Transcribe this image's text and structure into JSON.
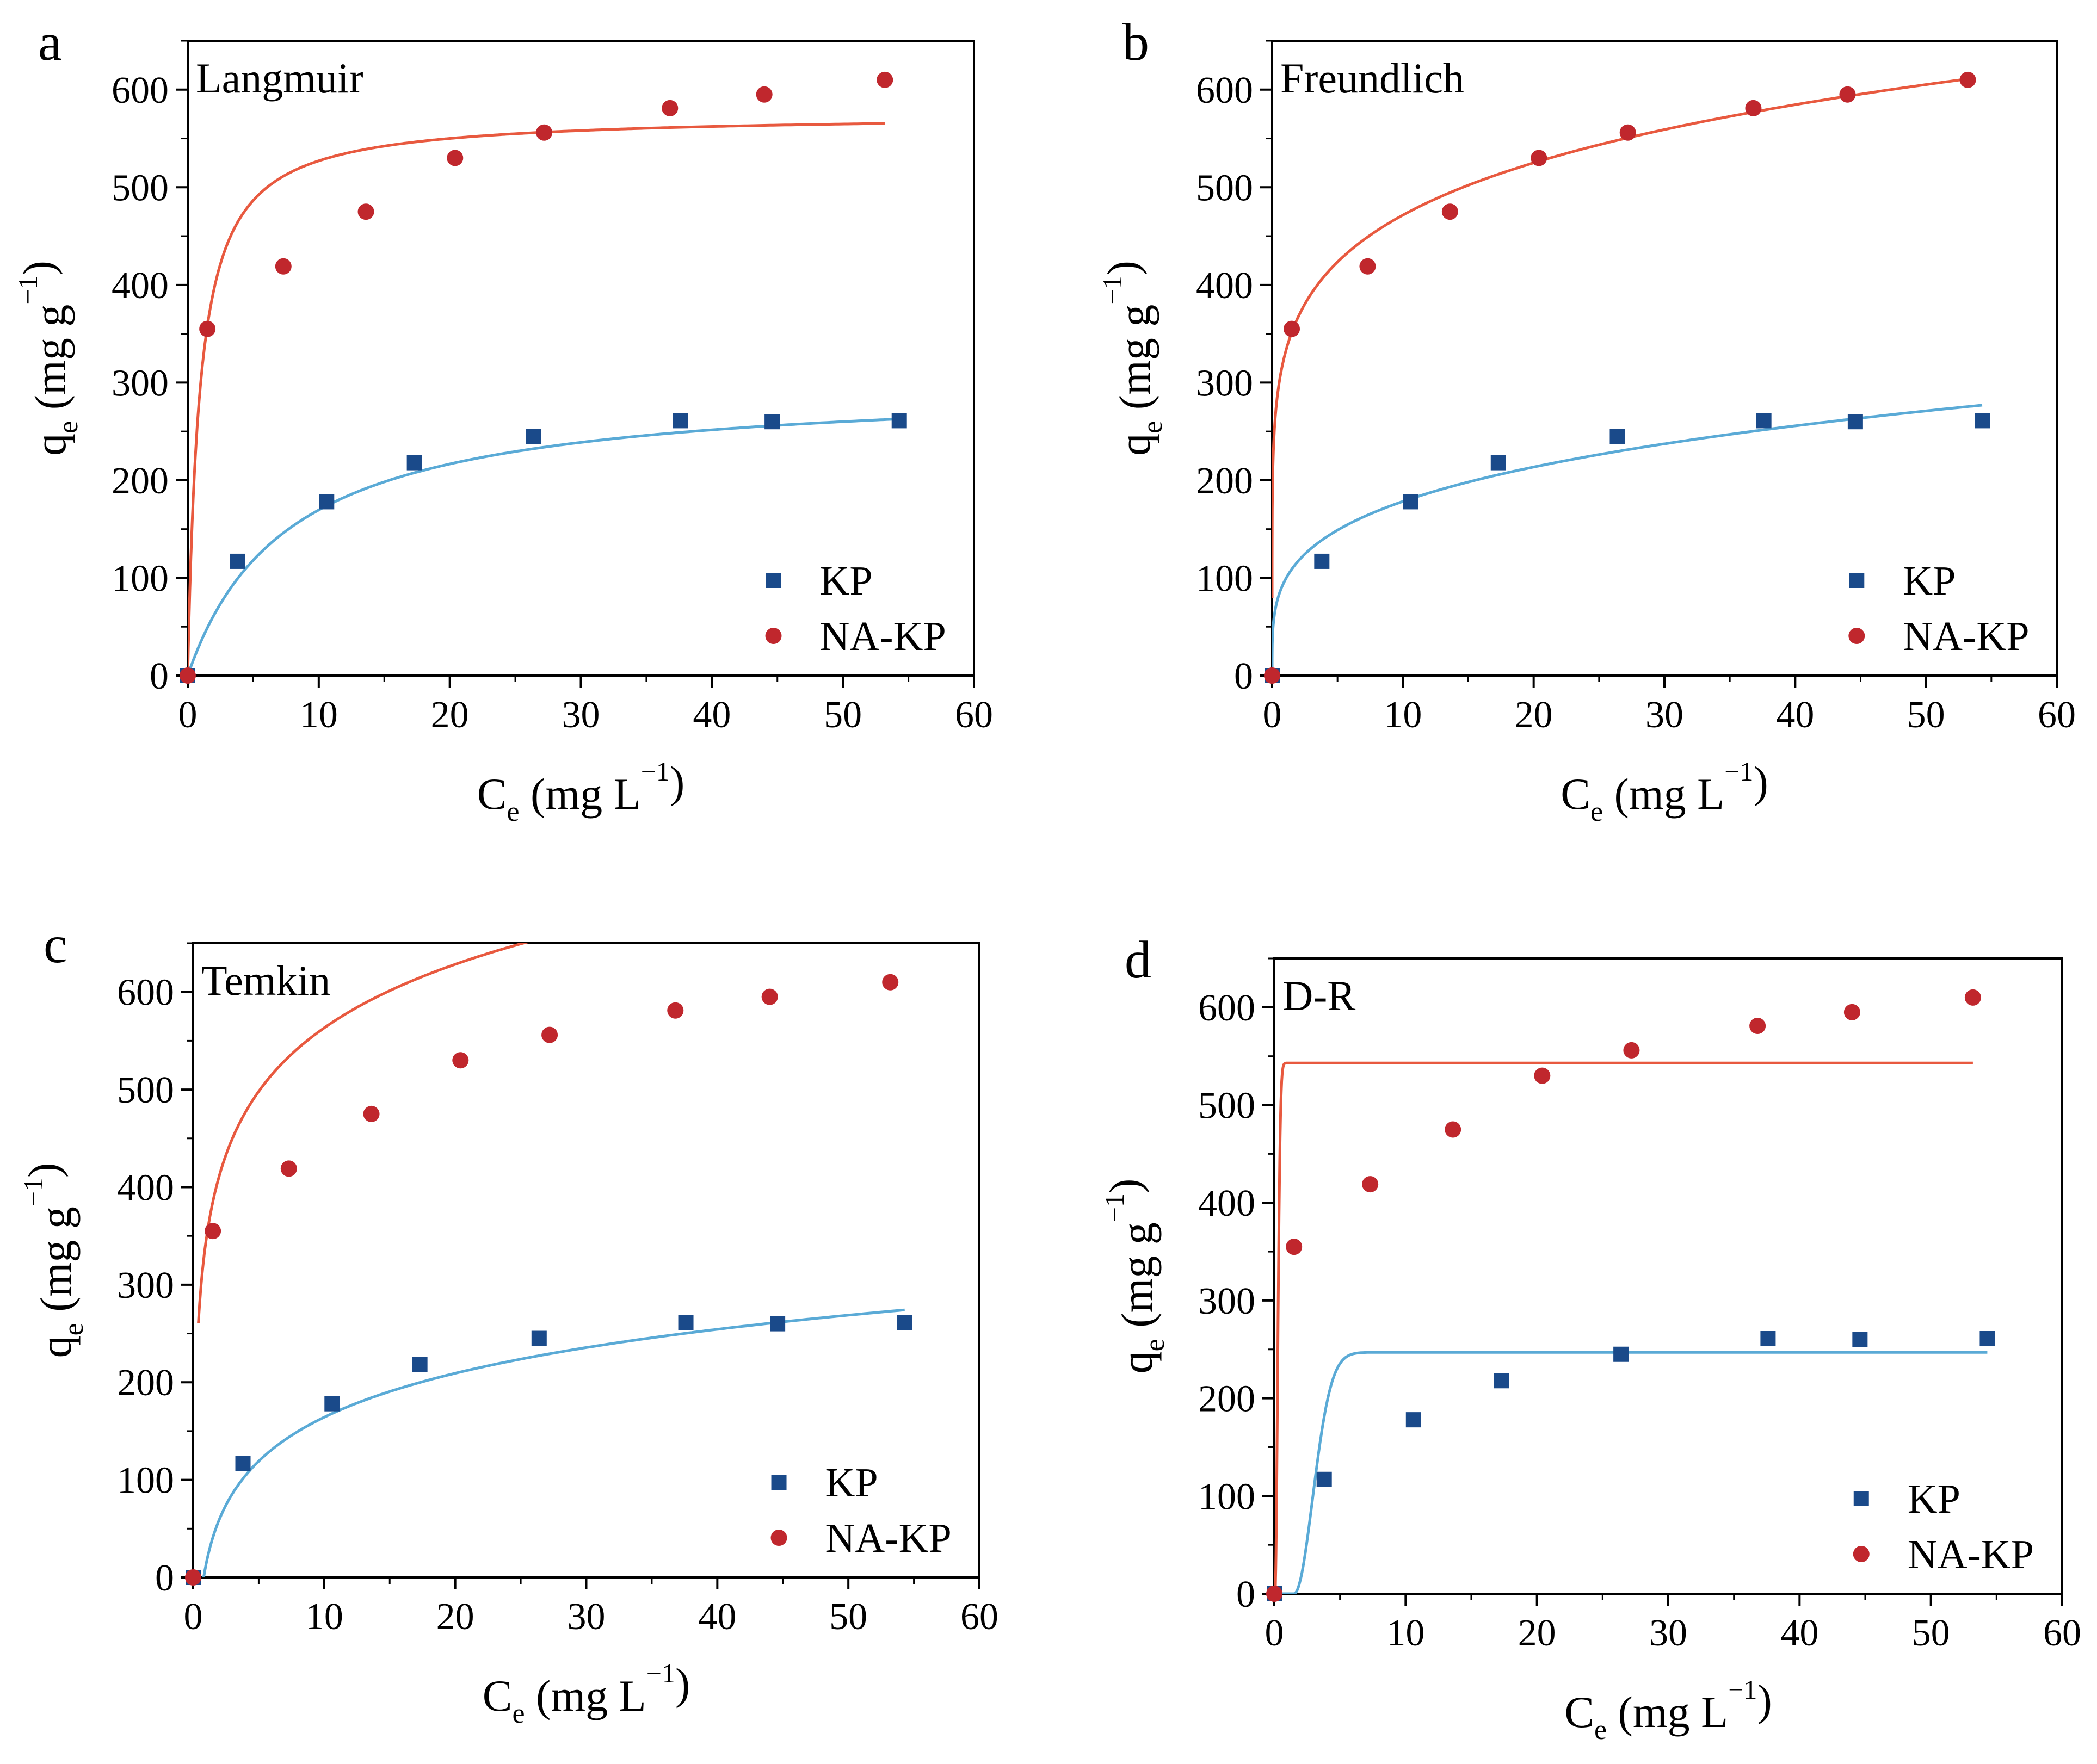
{
  "colors": {
    "kp_marker": "#1a4a8a",
    "nakp_marker": "#c0272d",
    "kp_fit": "#5aaad6",
    "nakp_fit": "#e8593f",
    "axis": "#000000"
  },
  "chart_data": [
    {
      "type": "scatter",
      "panel": "a",
      "model": "Langmuir",
      "xlabel": {
        "main": "C",
        "sub": "e",
        "unit_pre": "(mg L",
        "unit_sup": "−1",
        "unit_post": ")"
      },
      "ylabel": {
        "main": "q",
        "sub": "e",
        "unit_pre": "(mg g",
        "unit_sup": "−1",
        "unit_post": ")"
      },
      "xlim": [
        0,
        60
      ],
      "ylim": [
        0,
        650
      ],
      "xticks": [
        0,
        10,
        20,
        30,
        40,
        50,
        60
      ],
      "yticks": [
        0,
        100,
        200,
        300,
        400,
        500,
        600
      ],
      "legend_position": "lower-right",
      "series": [
        {
          "name": "KP",
          "marker": "square",
          "x": [
            0,
            3.8,
            10.6,
            17.3,
            26.4,
            37.6,
            44.6,
            54.3
          ],
          "y": [
            0,
            117,
            178,
            218,
            245,
            261,
            260,
            261
          ],
          "fit": {
            "model": "langmuir",
            "qmax": 300,
            "KL": 0.13,
            "x_end": 54.3
          }
        },
        {
          "name": "NA-KP",
          "marker": "circle",
          "x": [
            0,
            1.5,
            7.3,
            13.6,
            20.4,
            27.2,
            36.8,
            44.0,
            53.2
          ],
          "y": [
            0,
            355,
            419,
            475,
            530,
            556,
            581,
            595,
            610
          ],
          "fit": {
            "model": "langmuir",
            "qmax": 575,
            "KL": 1.1,
            "x_end": 53.2
          }
        }
      ]
    },
    {
      "type": "scatter",
      "panel": "b",
      "model": "Freundlich",
      "xlabel": {
        "main": "C",
        "sub": "e",
        "unit_pre": "(mg L",
        "unit_sup": "−1",
        "unit_post": ")"
      },
      "ylabel": {
        "main": "q",
        "sub": "e",
        "unit_pre": "(mg g",
        "unit_sup": "−1",
        "unit_post": ")"
      },
      "xlim": [
        0,
        60
      ],
      "ylim": [
        0,
        650
      ],
      "xticks": [
        0,
        10,
        20,
        30,
        40,
        50,
        60
      ],
      "yticks": [
        0,
        100,
        200,
        300,
        400,
        500,
        600
      ],
      "legend_position": "lower-right",
      "series": [
        {
          "name": "KP",
          "marker": "square",
          "x": [
            0,
            3.8,
            10.6,
            17.3,
            26.4,
            37.6,
            44.6,
            54.3
          ],
          "y": [
            0,
            117,
            178,
            218,
            245,
            261,
            260,
            261
          ],
          "fit": {
            "model": "freundlich",
            "KF": 98,
            "n_inv": 0.26,
            "x_end": 54.3
          }
        },
        {
          "name": "NA-KP",
          "marker": "circle",
          "x": [
            0,
            1.5,
            7.3,
            13.6,
            20.4,
            27.2,
            36.8,
            44.0,
            53.2
          ],
          "y": [
            0,
            355,
            419,
            475,
            530,
            556,
            581,
            595,
            610
          ],
          "fit": {
            "model": "freundlich",
            "KF": 330,
            "n_inv": 0.155,
            "x_end": 53.2
          }
        }
      ]
    },
    {
      "type": "scatter",
      "panel": "c",
      "model": "Temkin",
      "xlabel": {
        "main": "C",
        "sub": "e",
        "unit_pre": "(mg L",
        "unit_sup": "−1",
        "unit_post": ")"
      },
      "ylabel": {
        "main": "q",
        "sub": "e",
        "unit_pre": "(mg g",
        "unit_sup": "−1",
        "unit_post": ")"
      },
      "xlim": [
        0,
        60
      ],
      "ylim": [
        0,
        650
      ],
      "xticks": [
        0,
        10,
        20,
        30,
        40,
        50,
        60
      ],
      "yticks": [
        0,
        100,
        200,
        300,
        400,
        500,
        600
      ],
      "legend_position": "lower-right",
      "series": [
        {
          "name": "KP",
          "marker": "square",
          "x": [
            0,
            3.8,
            10.6,
            17.3,
            26.4,
            37.6,
            44.6,
            54.3
          ],
          "y": [
            0,
            117,
            178,
            218,
            245,
            261,
            260,
            261
          ],
          "fit": {
            "model": "temkin",
            "B": 65,
            "KT": 1.25,
            "x_start": 0.8,
            "x_end": 54.3
          }
        },
        {
          "name": "NA-KP",
          "marker": "circle",
          "x": [
            0,
            1.5,
            7.3,
            13.6,
            20.4,
            27.2,
            36.8,
            44.0,
            53.2
          ],
          "y": [
            0,
            355,
            419,
            475,
            530,
            556,
            581,
            595,
            610
          ],
          "fit": {
            "model": "temkin",
            "B": 94,
            "KT": 40,
            "x_start": 0.4,
            "x_end": 53.2
          }
        }
      ]
    },
    {
      "type": "scatter",
      "panel": "d",
      "model": "D-R",
      "xlabel": {
        "main": "C",
        "sub": "e",
        "unit_pre": "(mg L",
        "unit_sup": "−1",
        "unit_post": ")"
      },
      "ylabel": {
        "main": "q",
        "sub": "e",
        "unit_pre": "(mg g",
        "unit_sup": "−1",
        "unit_post": ")"
      },
      "xlim": [
        0,
        60
      ],
      "ylim": [
        0,
        650
      ],
      "xticks": [
        0,
        10,
        20,
        30,
        40,
        50,
        60
      ],
      "yticks": [
        0,
        100,
        200,
        300,
        400,
        500,
        600
      ],
      "legend_position": "lower-right",
      "series": [
        {
          "name": "KP",
          "marker": "square",
          "x": [
            0,
            3.8,
            10.6,
            17.3,
            26.4,
            37.6,
            44.6,
            54.3
          ],
          "y": [
            0,
            117,
            178,
            218,
            245,
            261,
            260,
            261
          ],
          "fit": {
            "model": "dr",
            "qmax": 247,
            "k": 2.0,
            "x0": 1.5,
            "x_end": 54.3
          }
        },
        {
          "name": "NA-KP",
          "marker": "circle",
          "x": [
            0,
            1.5,
            7.3,
            13.6,
            20.4,
            27.2,
            36.8,
            44.0,
            53.2
          ],
          "y": [
            0,
            355,
            419,
            475,
            530,
            556,
            581,
            595,
            610
          ],
          "fit": {
            "model": "dr",
            "qmax": 543,
            "k": 0.28,
            "x0": 0.05,
            "x_end": 53.2
          }
        }
      ]
    }
  ]
}
